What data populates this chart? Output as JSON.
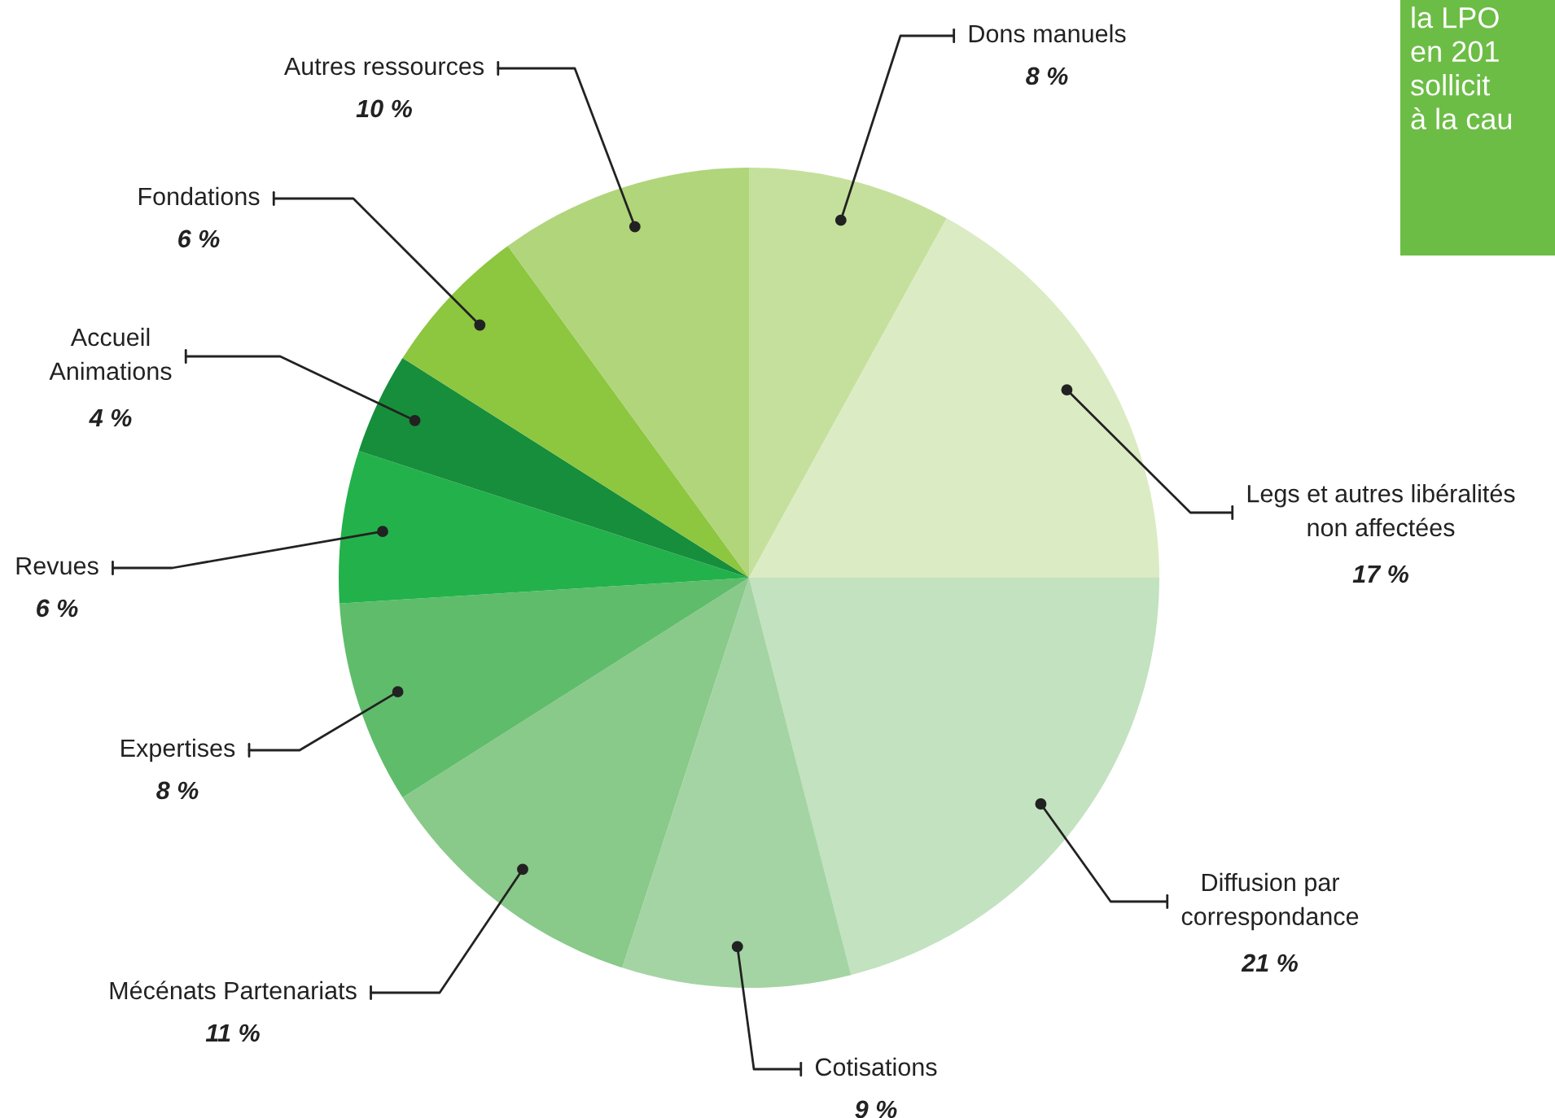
{
  "chart_data": {
    "type": "pie",
    "categories": [
      "Dons manuels",
      "Legs et autres libéralités\nnon affectées",
      "Diffusion par\ncorrespondance",
      "Cotisations",
      "Mécénats Partenariats",
      "Expertises",
      "Revues",
      "Accueil\nAnimations",
      "Fondations",
      "Autres ressources"
    ],
    "values": [
      8,
      17,
      21,
      9,
      11,
      8,
      6,
      4,
      6,
      10
    ],
    "value_labels": [
      "8 %",
      "17 %",
      "21 %",
      "9 %",
      "11 %",
      "8 %",
      "6 %",
      "4 %",
      "6 %",
      "10 %"
    ],
    "colors": [
      "#c5e09c",
      "#dbebc3",
      "#c2e2c0",
      "#a4d4a3",
      "#89c98a",
      "#5fbc6b",
      "#23b14b",
      "#178e3b",
      "#8dc63f",
      "#b0d57a"
    ],
    "annotations": [
      "la LPO\nen 201\nsollicit\nà la cau"
    ]
  }
}
